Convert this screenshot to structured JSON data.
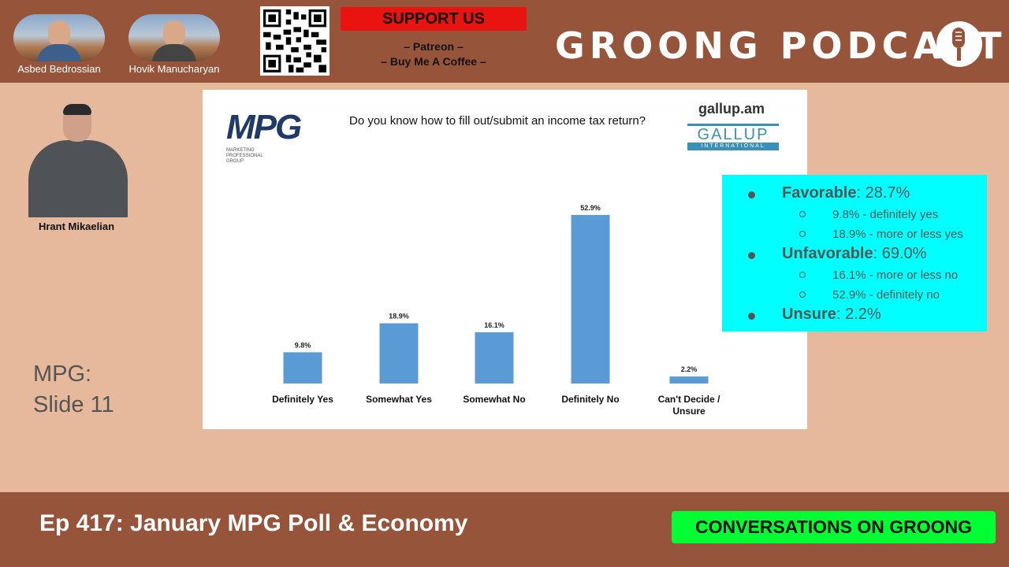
{
  "hosts": [
    {
      "name": "Asbed Bedrossian"
    },
    {
      "name": "Hovik Manucharyan"
    }
  ],
  "support": {
    "title": "SUPPORT US",
    "link1": "– Patreon –",
    "link2": "– Buy Me A Coffee –"
  },
  "brand": {
    "title": "GROONG PODCAST"
  },
  "guest": {
    "name": "Hrant Mikaelian"
  },
  "slide_label": {
    "line1": "MPG:",
    "line2": "Slide 11"
  },
  "slide": {
    "mpg_logo": {
      "letters": "MPG",
      "sub1": "MARKETING",
      "sub2": "PROFESSIONAL",
      "sub3": "GROUP"
    },
    "question": "Do you know how to fill out/submit an income tax return?",
    "gallup_url": "gallup.am",
    "gallup_logo": {
      "word": "GALLUP",
      "sub": "INTERNATIONAL"
    }
  },
  "chart_data": {
    "type": "bar",
    "title": "Do you know how to fill out/submit an income tax return?",
    "categories": [
      "Definitely Yes",
      "Somewhat Yes",
      "Somewhat No",
      "Definitely No",
      "Can't Decide / Unsure"
    ],
    "values": [
      9.8,
      18.9,
      16.1,
      52.9,
      2.2
    ],
    "value_labels": [
      "9.8%",
      "18.9%",
      "16.1%",
      "52.9%",
      "2.2%"
    ],
    "ylim": [
      0,
      52.9
    ],
    "bar_color": "#5b9bd5",
    "grid": false
  },
  "summary": {
    "favorable": {
      "label": "Favorable",
      "value": ": 28.7%"
    },
    "fav_items": [
      "9.8% - definitely yes",
      "18.9% - more or less yes"
    ],
    "unfavorable": {
      "label": "Unfavorable",
      "value": ": 69.0%"
    },
    "unfav_items": [
      "16.1% - more or less no",
      "52.9% - definitely no"
    ],
    "unsure": {
      "label": "Unsure",
      "value": ": 2.2%"
    }
  },
  "footer": {
    "episode": "Ep 417: January MPG Poll & Economy",
    "badge": "CONVERSATIONS ON GROONG"
  },
  "colors": {
    "bar": "#96553a",
    "background": "#e6b99c",
    "cyan": "#00ffff",
    "green": "#00ff33",
    "red": "#e8140f"
  }
}
